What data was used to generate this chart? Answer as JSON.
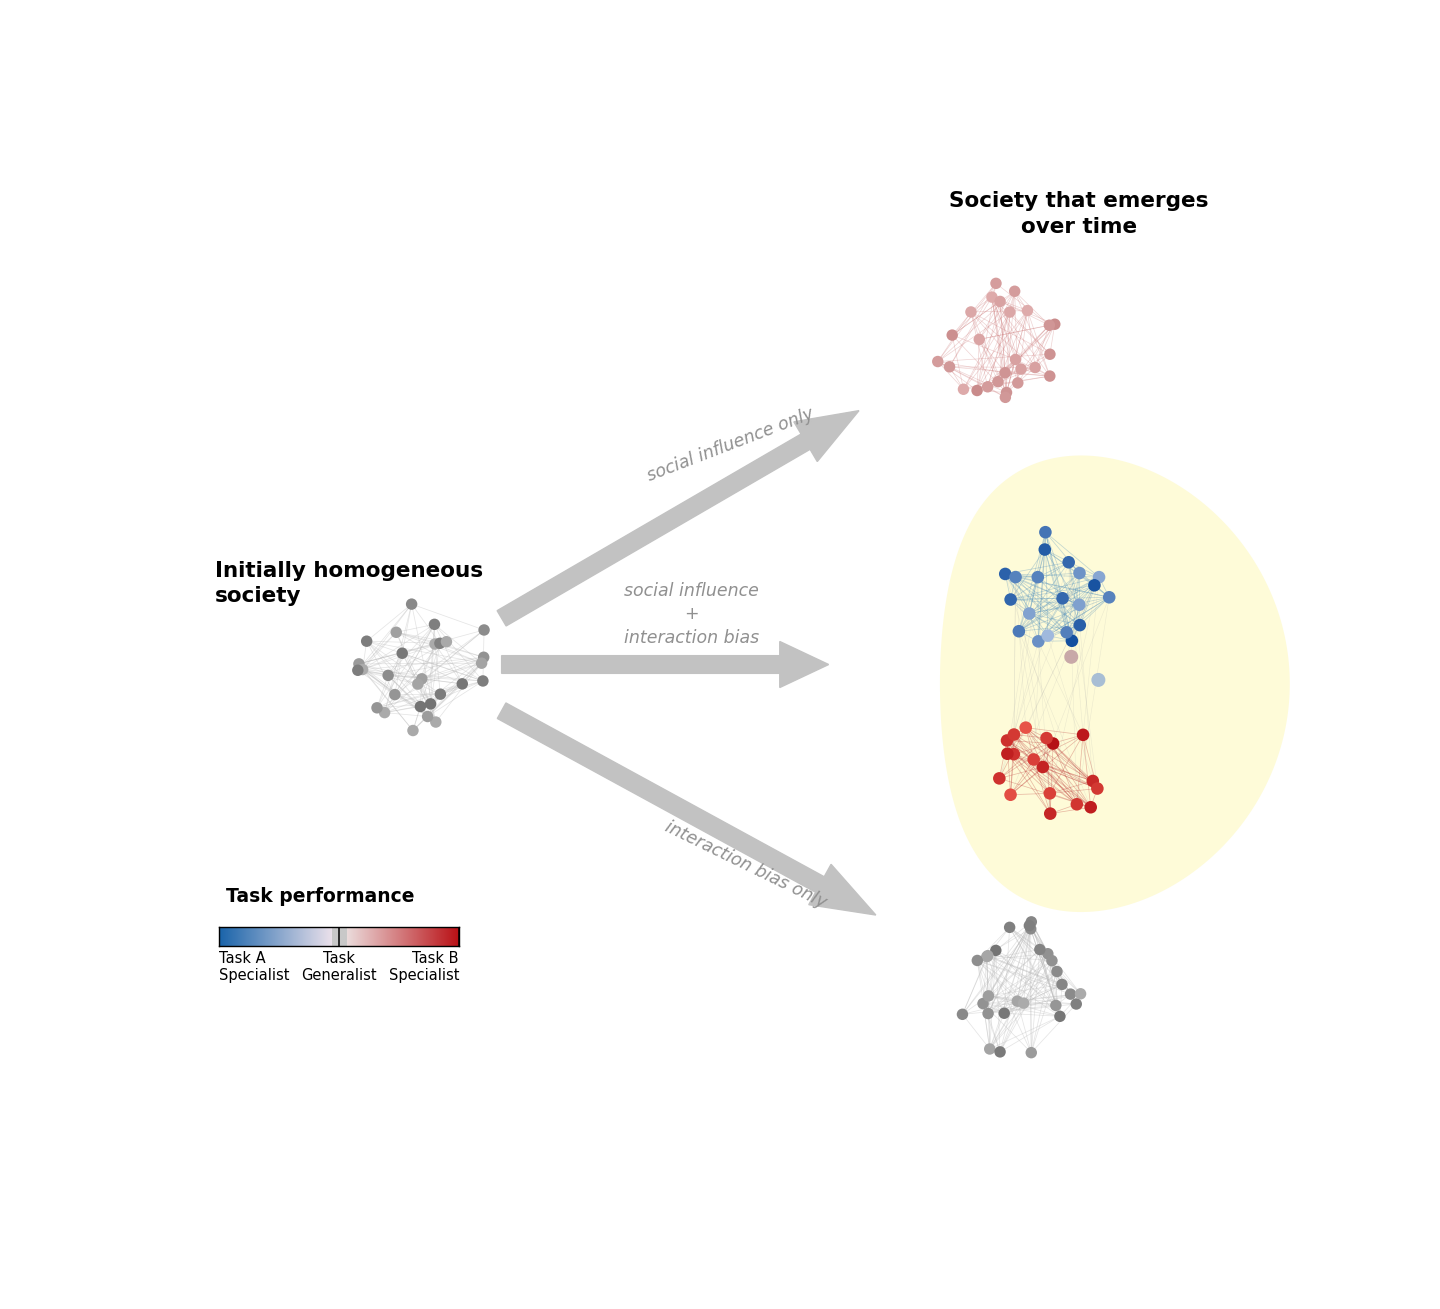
{
  "bg_color": "#ffffff",
  "label_initially": "Initially homogeneous\nsociety",
  "label_society_emerges": "Society that emerges\nover time",
  "label_social_only": "social influence only",
  "label_social_bias": "social influence\n+\ninteraction bias",
  "label_interaction_only": "interaction bias only",
  "label_task_perf": "Task performance",
  "label_task_a": "Task A\nSpecialist",
  "label_task_gen": "Task\nGeneralist",
  "label_task_b": "Task B\nSpecialist",
  "yellow_bg": "#fefbd8",
  "arrow_color": "#c0c0c0",
  "gray_edge": "#cccccc"
}
